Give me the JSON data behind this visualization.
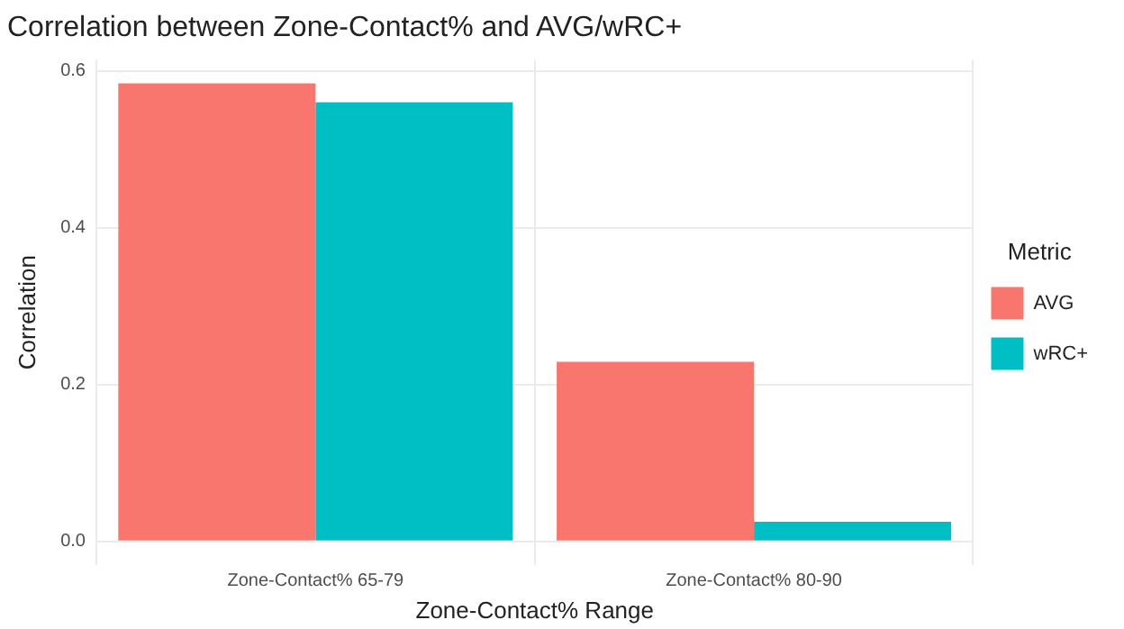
{
  "chart_data": {
    "type": "bar",
    "title": "Correlation between Zone-Contact% and AVG/wRC+",
    "xlabel": "Zone-Contact% Range",
    "ylabel": "Correlation",
    "legend_title": "Metric",
    "categories": [
      "Zone-Contact% 65-79",
      "Zone-Contact% 80-90"
    ],
    "series": [
      {
        "name": "AVG",
        "color": "#f8766d",
        "values": [
          0.584,
          0.229
        ]
      },
      {
        "name": "wRC+",
        "color": "#00bfc4",
        "values": [
          0.56,
          0.025
        ]
      }
    ],
    "ylim": [
      -0.03,
      0.614
    ],
    "yticks": [
      {
        "value": 0,
        "label": "0.0"
      },
      0.2,
      0.4,
      0.6
    ],
    "grid": true,
    "legend": "right"
  }
}
